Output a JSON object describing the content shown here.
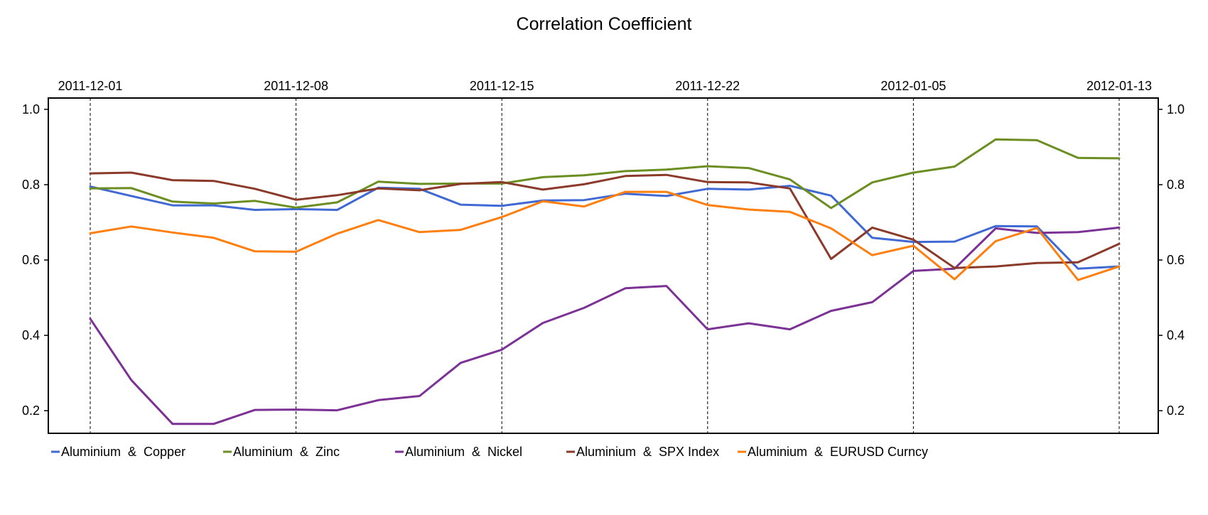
{
  "chart_data": {
    "type": "line",
    "title": "Correlation Coefficient",
    "xlabel": "",
    "ylabel": "",
    "ylim": [
      0.14,
      1.03
    ],
    "yticks": [
      "0.2",
      "0.4",
      "0.6",
      "0.8",
      "1.0"
    ],
    "ytick_values": [
      0.2,
      0.4,
      0.6,
      0.8,
      1.0
    ],
    "x": [
      "2011-12-01",
      "2011-12-02",
      "2011-12-05",
      "2011-12-06",
      "2011-12-07",
      "2011-12-08",
      "2011-12-09",
      "2011-12-12",
      "2011-12-13",
      "2011-12-14",
      "2011-12-15",
      "2011-12-16",
      "2011-12-19",
      "2011-12-20",
      "2011-12-21",
      "2011-12-22",
      "2011-12-23",
      "2011-12-26",
      "2011-12-27",
      "2011-12-28",
      "2012-01-05",
      "2012-01-06",
      "2012-01-09",
      "2012-01-10",
      "2012-01-12",
      "2012-01-13"
    ],
    "date_labels": [
      "2011-12-01",
      "2011-12-08",
      "2011-12-15",
      "2011-12-22",
      "2012-01-05",
      "2012-01-13"
    ],
    "grid": "vertical dashed lines at labeled dates",
    "legend": "bottom",
    "series": [
      {
        "name": "Aluminium  &  Copper",
        "color": "#4169D4",
        "values": [
          0.795,
          0.77,
          0.745,
          0.745,
          0.733,
          0.735,
          0.733,
          0.792,
          0.789,
          0.747,
          0.744,
          0.758,
          0.759,
          0.776,
          0.77,
          0.789,
          0.787,
          0.797,
          0.771,
          0.659,
          0.648,
          0.649,
          0.69,
          0.689,
          0.577,
          0.583
        ]
      },
      {
        "name": "Aluminium  &  Zinc",
        "color": "#6B8E23",
        "values": [
          0.79,
          0.791,
          0.755,
          0.75,
          0.757,
          0.739,
          0.753,
          0.808,
          0.802,
          0.803,
          0.803,
          0.82,
          0.825,
          0.836,
          0.84,
          0.849,
          0.844,
          0.814,
          0.738,
          0.806,
          0.832,
          0.848,
          0.92,
          0.918,
          0.871,
          0.87
        ]
      },
      {
        "name": "Aluminium  &  Nickel",
        "color": "#7B3294",
        "values": [
          0.444,
          0.281,
          0.165,
          0.165,
          0.202,
          0.203,
          0.201,
          0.228,
          0.239,
          0.327,
          0.362,
          0.433,
          0.473,
          0.525,
          0.531,
          0.416,
          0.432,
          0.416,
          0.465,
          0.488,
          0.571,
          0.577,
          0.684,
          0.672,
          0.674,
          0.686
        ]
      },
      {
        "name": "Aluminium  &  SPX Index",
        "color": "#8B3A2A",
        "values": [
          0.83,
          0.832,
          0.812,
          0.81,
          0.789,
          0.76,
          0.772,
          0.79,
          0.785,
          0.802,
          0.807,
          0.787,
          0.801,
          0.823,
          0.826,
          0.807,
          0.806,
          0.79,
          0.603,
          0.686,
          0.654,
          0.579,
          0.583,
          0.592,
          0.594,
          0.643
        ]
      },
      {
        "name": "Aluminium  &  EURUSD Curncy",
        "color": "#FF7F0E",
        "values": [
          0.671,
          0.689,
          0.673,
          0.659,
          0.623,
          0.622,
          0.67,
          0.706,
          0.674,
          0.68,
          0.714,
          0.756,
          0.742,
          0.781,
          0.781,
          0.746,
          0.734,
          0.728,
          0.684,
          0.613,
          0.638,
          0.549,
          0.65,
          0.685,
          0.547,
          0.583
        ]
      }
    ]
  }
}
